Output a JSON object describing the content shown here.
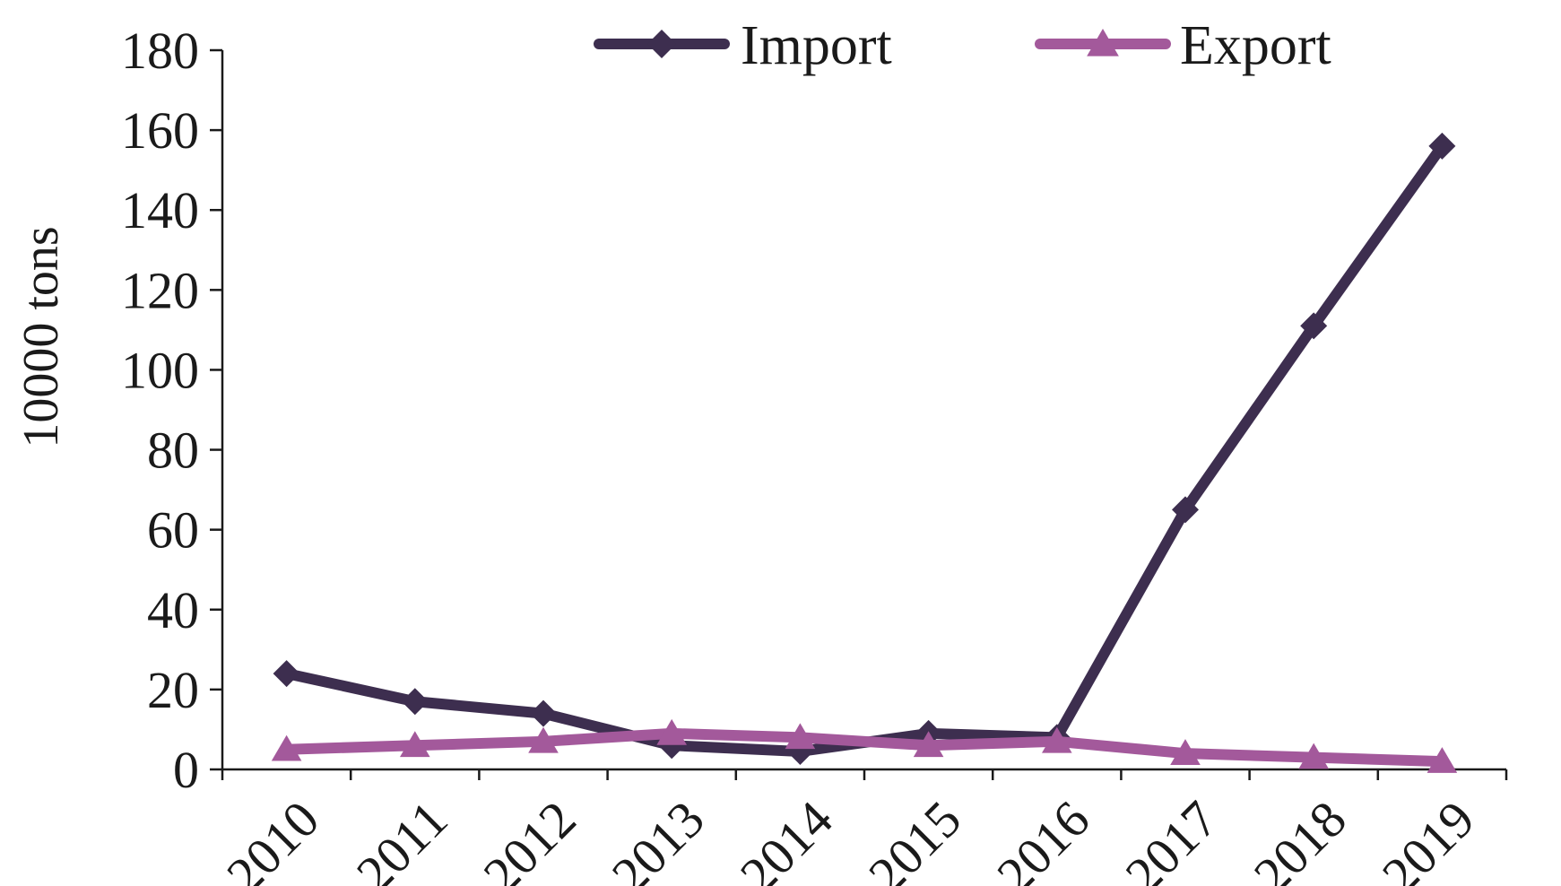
{
  "chart_data": {
    "type": "line",
    "title": "",
    "xlabel": "",
    "ylabel": "10000 tons",
    "categories": [
      "2010",
      "2011",
      "2012",
      "2013",
      "2014",
      "2015",
      "2016",
      "2017",
      "2018",
      "2019"
    ],
    "ylim": [
      0,
      180
    ],
    "yticks": [
      "0",
      "20",
      "40",
      "60",
      "80",
      "100",
      "120",
      "140",
      "160",
      "180"
    ],
    "grid": false,
    "legend_position": "top-center",
    "series": [
      {
        "name": "Import",
        "color": "#3d2e4f",
        "marker": "diamond",
        "values": [
          24,
          17,
          14,
          6,
          4.5,
          9,
          8,
          65,
          111,
          156
        ]
      },
      {
        "name": "Export",
        "color": "#a3599b",
        "marker": "triangle",
        "values": [
          5,
          6,
          7,
          9,
          8,
          6,
          7,
          4,
          3,
          2
        ]
      }
    ]
  }
}
